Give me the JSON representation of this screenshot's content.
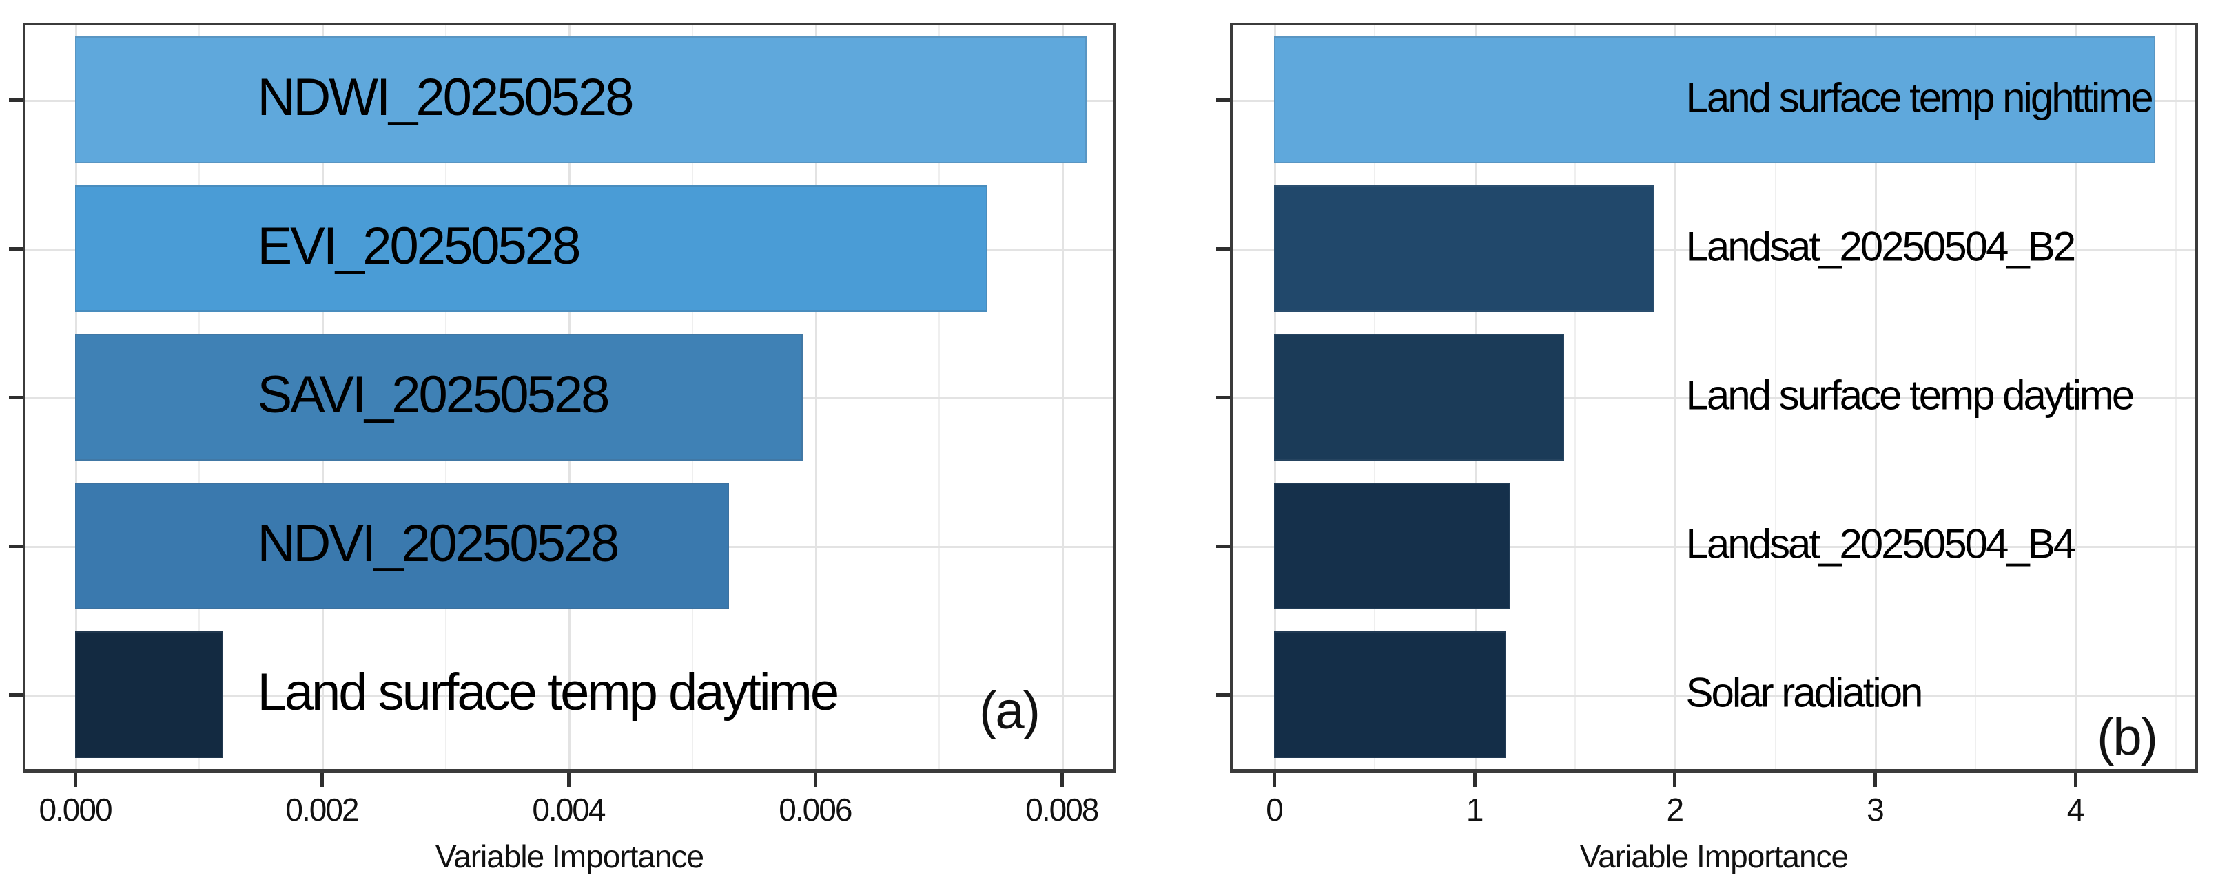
{
  "figure": {
    "description": "Two-panel horizontal bar chart of variable importance",
    "background": "#ffffff"
  },
  "colors": {
    "panel_border": "#3b3b3b",
    "grid_major": "#e3e3e3",
    "grid_minor": "#efefef",
    "tick_mark": "#2e2e2e",
    "text": "#000000"
  },
  "chart_data": [
    {
      "type": "bar",
      "orientation": "horizontal",
      "panel_label": "(a)",
      "title": "",
      "xlabel": "Variable Importance",
      "ylabel": "",
      "categories": [
        "NDWI_20250528",
        "EVI_20250528",
        "SAVI_20250528",
        "NDVI_20250528",
        "Land surface temp daytime"
      ],
      "values": [
        0.0082,
        0.0074,
        0.0059,
        0.0053,
        0.0012
      ],
      "bar_colors": [
        "#5FA8DC",
        "#4A9CD6",
        "#3F81B5",
        "#3A79AE",
        "#132A41"
      ],
      "xticks": [
        0,
        0.002,
        0.004,
        0.006,
        0.008
      ],
      "xtick_labels": [
        "0.000",
        "0.002",
        "0.004",
        "0.006",
        "0.008"
      ],
      "x_minor_ticks": [
        0.001,
        0.003,
        0.005,
        0.007
      ],
      "xlim": [
        0,
        0.00842
      ],
      "grid": true,
      "legend": "none",
      "label_placement": "left-aligned inside bars"
    },
    {
      "type": "bar",
      "orientation": "horizontal",
      "panel_label": "(b)",
      "title": "",
      "xlabel": "Variable Importance",
      "ylabel": "",
      "categories": [
        "Land surface temp nighttime",
        "Landsat_20250504_B2",
        "Land surface temp daytime",
        "Landsat_20250504_B4",
        "Solar radiation"
      ],
      "values": [
        4.4,
        1.9,
        1.45,
        1.18,
        1.16
      ],
      "bar_colors": [
        "#5FA8DC",
        "#21486B",
        "#1B3B58",
        "#15304B",
        "#142E48"
      ],
      "xticks": [
        0,
        1,
        2,
        3,
        4
      ],
      "xtick_labels": [
        "0",
        "1",
        "2",
        "3",
        "4"
      ],
      "x_minor_ticks": [
        0.5,
        1.5,
        2.5,
        3.5,
        4.5
      ],
      "xlim": [
        0,
        4.6
      ],
      "grid": true,
      "legend": "none",
      "label_placement": "left-aligned right of bars"
    }
  ]
}
